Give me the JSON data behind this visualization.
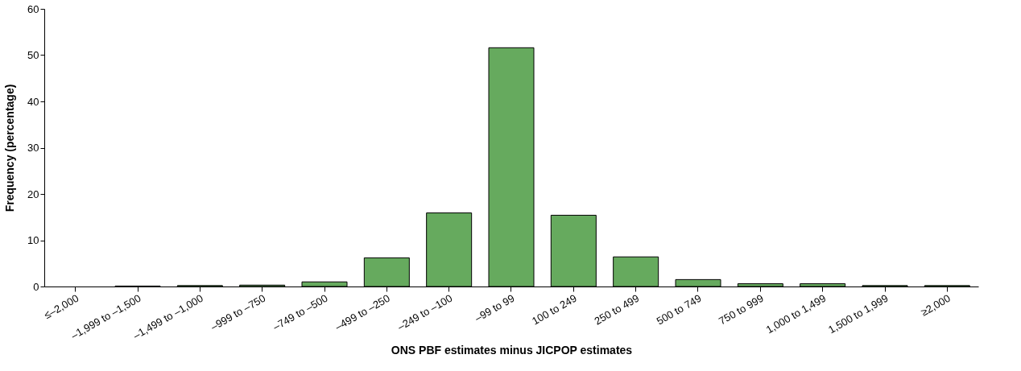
{
  "chart_data": {
    "type": "bar",
    "xlabel": "ONS PBF estimates minus JICPOP estimates",
    "ylabel": "Frequency (percentage)",
    "categories": [
      "≤–2,000",
      "–1,999 to –1,500",
      "–1,499 to –1,000",
      "–999 to –750",
      "–749 to –500",
      "–499 to –250",
      "–249 to –100",
      "–99 to 99",
      "100 to 249",
      "250 to 499",
      "500 to 749",
      "750 to 999",
      "1,000 to 1,499",
      "1,500 to 1,999",
      "≥2,000"
    ],
    "values": [
      0,
      0.1,
      0.2,
      0.3,
      1.0,
      6.2,
      15.9,
      51.6,
      15.4,
      6.4,
      1.5,
      0.6,
      0.6,
      0.2,
      0.2
    ],
    "color": "#66aa5e",
    "ylim": [
      0,
      60
    ],
    "yticks": [
      0,
      10,
      20,
      30,
      40,
      50,
      60
    ],
    "grid": false
  }
}
